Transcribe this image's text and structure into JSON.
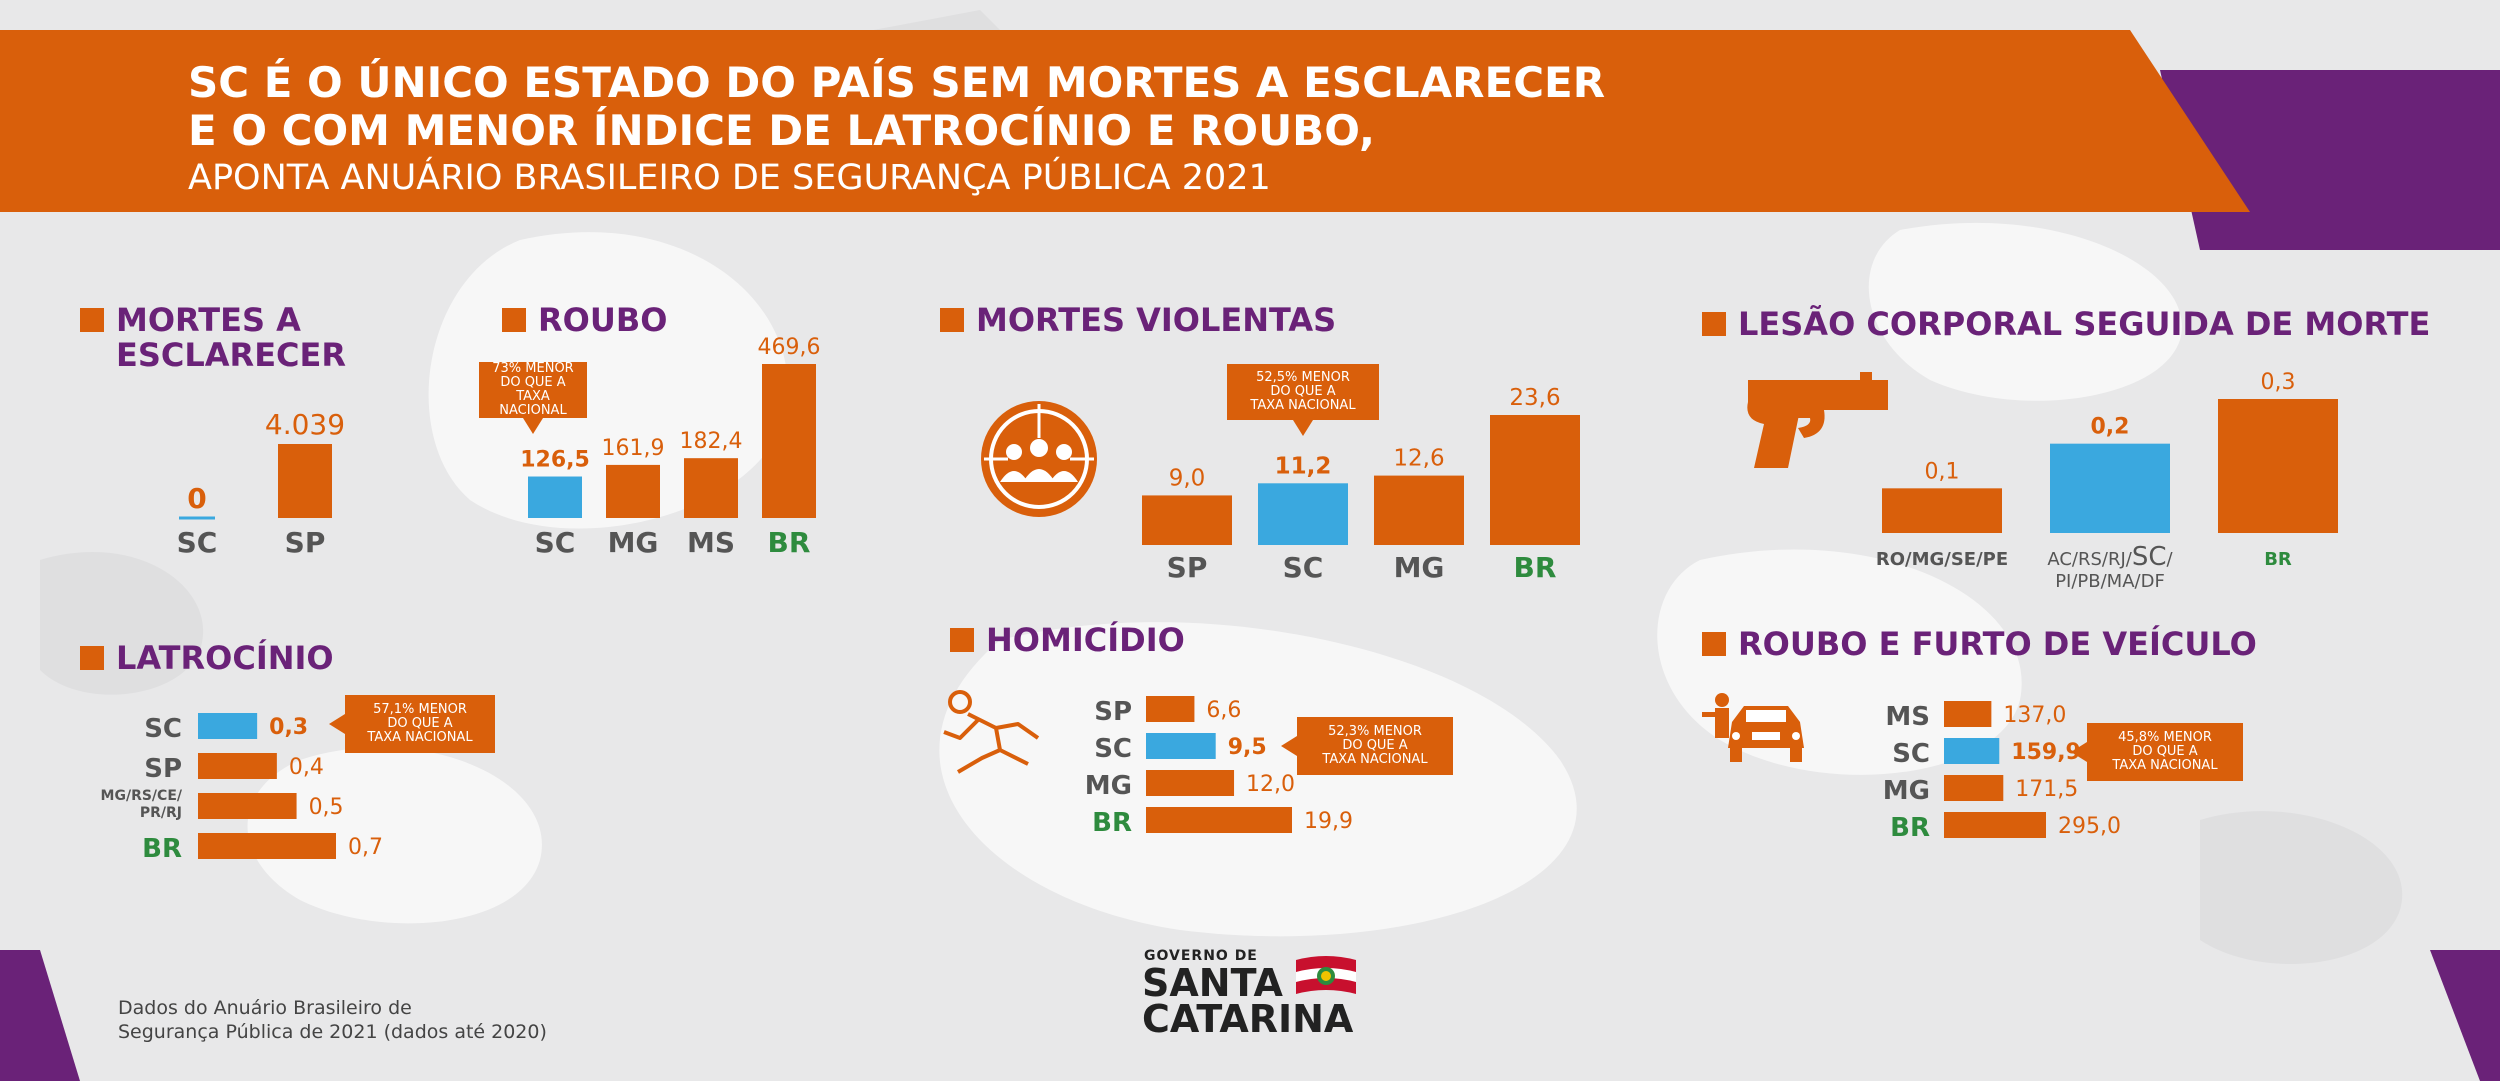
{
  "colors": {
    "orange": "#d95f0b",
    "purple": "#6a2278",
    "blue": "#3aa8df",
    "green": "#2e8b3e",
    "gray_label": "#555555"
  },
  "header": {
    "line1": "SC É O ÚNICO ESTADO DO PAÍS SEM MORTES A ESCLARECER",
    "line2": "E O COM MENOR ÍNDICE DE LATROCÍNIO E ROUBO,",
    "line3": "APONTA ANUÁRIO BRASILEIRO DE SEGURANÇA PÚBLICA 2021"
  },
  "sections": {
    "mortes_esclarecer": {
      "title_l1": "MORTES A",
      "title_l2": "ESCLARECER"
    },
    "roubo": {
      "title": "ROUBO",
      "callout": [
        "73% MENOR",
        "DO QUE A",
        "TAXA NACIONAL"
      ]
    },
    "mortes_violentas": {
      "title": "MORTES VIOLENTAS",
      "callout": [
        "52,5% MENOR",
        "DO QUE A",
        "TAXA NACIONAL"
      ]
    },
    "lesao": {
      "title": "LESÃO CORPORAL SEGUIDA DE MORTE"
    },
    "latrocinio": {
      "title": "LATROCÍNIO",
      "callout": [
        "57,1% MENOR",
        "DO QUE A",
        "TAXA NACIONAL"
      ]
    },
    "homicidio": {
      "title": "HOMICÍDIO",
      "callout": [
        "52,3% MENOR",
        "DO QUE A",
        "TAXA NACIONAL"
      ]
    },
    "veiculo": {
      "title": "ROUBO E FURTO DE VEÍCULO",
      "callout": [
        "45,8% MENOR",
        "DO QUE A",
        "TAXA NACIONAL"
      ]
    }
  },
  "chart_data": [
    {
      "id": "mortes",
      "type": "bar",
      "title": "MORTES A ESCLARECER",
      "categories": [
        "SC",
        "SP"
      ],
      "values": [
        0,
        4039
      ],
      "labels": [
        "0",
        "4.039"
      ],
      "highlight": [
        true,
        false
      ],
      "label_colors": [
        "gray",
        "gray"
      ]
    },
    {
      "id": "roubo",
      "type": "bar",
      "title": "ROUBO",
      "categories": [
        "SC",
        "MG",
        "MS",
        "BR"
      ],
      "values": [
        126.5,
        161.9,
        182.4,
        469.6
      ],
      "labels": [
        "126,5",
        "161,9",
        "182,4",
        "469,6"
      ],
      "highlight": [
        true,
        false,
        false,
        false
      ],
      "label_colors": [
        "gray",
        "gray",
        "gray",
        "green"
      ]
    },
    {
      "id": "violentas",
      "type": "bar",
      "title": "MORTES VIOLENTAS",
      "categories": [
        "SP",
        "SC",
        "MG",
        "BR"
      ],
      "values": [
        9.0,
        11.2,
        12.6,
        23.6
      ],
      "labels": [
        "9,0",
        "11,2",
        "12,6",
        "23,6"
      ],
      "highlight": [
        false,
        true,
        false,
        false
      ],
      "label_colors": [
        "gray",
        "gray",
        "gray",
        "green"
      ]
    },
    {
      "id": "lesao",
      "type": "bar",
      "title": "LESÃO CORPORAL SEGUIDA DE MORTE",
      "categories": [
        "RO/MG/SE/PE",
        "AC/RS/RJ/SC/PI/PB/MA/DF",
        "BR"
      ],
      "category_lines": [
        [
          "RO/MG/SE/PE"
        ],
        [
          "AC/RS/RJ/",
          "SC",
          "/",
          "PI/PB/MA/DF"
        ],
        [
          "BR"
        ]
      ],
      "values": [
        0.1,
        0.2,
        0.3
      ],
      "labels": [
        "0,1",
        "0,2",
        "0,3"
      ],
      "highlight": [
        false,
        true,
        false
      ],
      "label_colors": [
        "gray",
        "gray",
        "green"
      ]
    },
    {
      "id": "latrocinio",
      "type": "bar",
      "orientation": "horizontal",
      "title": "LATROCÍNIO",
      "categories": [
        "SC",
        "SP",
        "MG/RS/CE/PR/RJ",
        "BR"
      ],
      "category_lines": [
        [
          "SC"
        ],
        [
          "SP"
        ],
        [
          "MG/RS/CE/",
          "PR/RJ"
        ],
        [
          "BR"
        ]
      ],
      "values": [
        0.3,
        0.4,
        0.5,
        0.7
      ],
      "labels": [
        "0,3",
        "0,4",
        "0,5",
        "0,7"
      ],
      "highlight": [
        true,
        false,
        false,
        false
      ],
      "label_colors": [
        "gray",
        "gray",
        "gray",
        "green"
      ]
    },
    {
      "id": "homicidio",
      "type": "bar",
      "orientation": "horizontal",
      "title": "HOMICÍDIO",
      "categories": [
        "SP",
        "SC",
        "MG",
        "BR"
      ],
      "values": [
        6.6,
        9.5,
        12.0,
        19.9
      ],
      "labels": [
        "6,6",
        "9,5",
        "12,0",
        "19,9"
      ],
      "highlight": [
        false,
        true,
        false,
        false
      ],
      "label_colors": [
        "gray",
        "gray",
        "gray",
        "green"
      ]
    },
    {
      "id": "veiculo",
      "type": "bar",
      "orientation": "horizontal",
      "title": "ROUBO E FURTO DE VEÍCULO",
      "categories": [
        "MS",
        "SC",
        "MG",
        "BR"
      ],
      "values": [
        137.0,
        159.9,
        171.5,
        295.0
      ],
      "labels": [
        "137,0",
        "159,9",
        "171,5",
        "295,0"
      ],
      "highlight": [
        false,
        true,
        false,
        false
      ],
      "label_colors": [
        "gray",
        "gray",
        "gray",
        "green"
      ]
    }
  ],
  "footer": {
    "source_l1": "Dados do Anuário Brasileiro de",
    "source_l2": "Segurança Pública de 2021 (dados até 2020)",
    "logo_top": "GOVERNO DE",
    "logo_l1": "SANTA",
    "logo_l2": "CATARINA"
  }
}
